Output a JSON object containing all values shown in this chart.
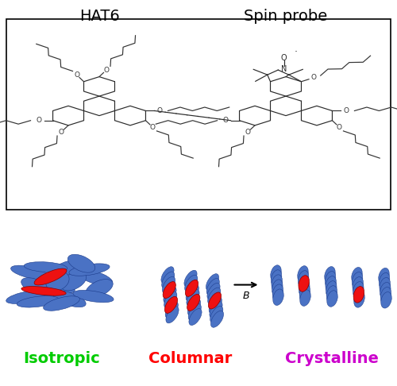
{
  "title_hat6": "HAT6",
  "title_spinprobe": "Spin probe",
  "label_isotropic": "Isotropic",
  "label_columnar": "Columnar",
  "label_crystalline": "Crystalline",
  "label_B": "B",
  "color_isotropic": "#00CC00",
  "color_columnar": "#FF0000",
  "color_crystalline": "#CC00CC",
  "color_blue_disc": "#4A72C4",
  "color_red_probe": "#EE1111",
  "bg_color": "#FFFFFF",
  "title_fontsize": 14,
  "label_fontsize": 14,
  "arrow_label_fontsize": 9
}
